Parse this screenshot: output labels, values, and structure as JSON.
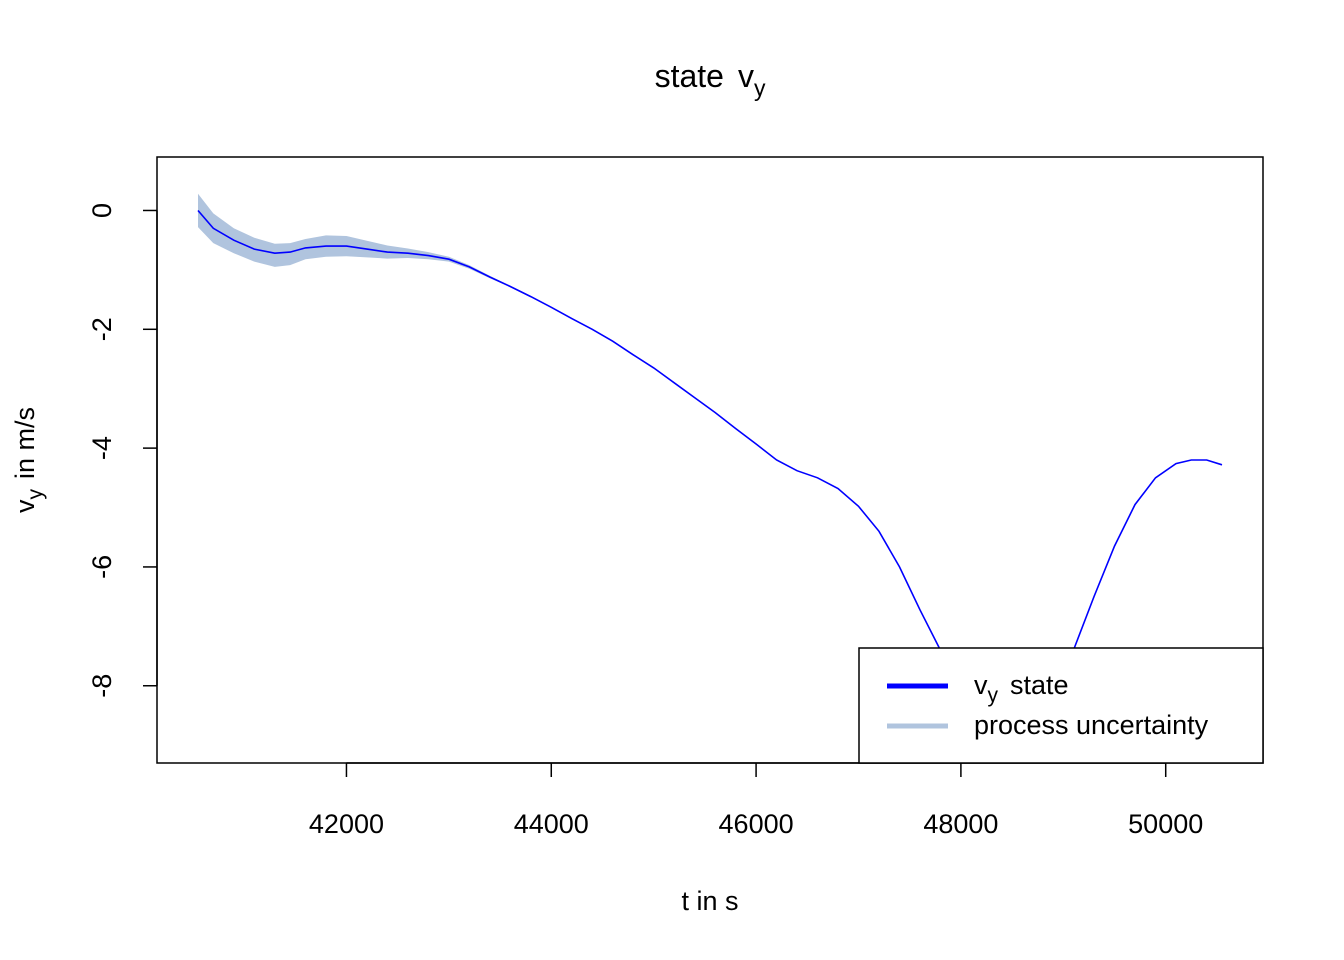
{
  "chart_data": {
    "type": "line",
    "title": {
      "main": "state",
      "symbol": "v",
      "subscript": "y"
    },
    "xlabel": "t in s",
    "ylabel": {
      "symbol": "v",
      "subscript": "y",
      "suffix": "in m/s"
    },
    "xlim": [
      40150,
      50950
    ],
    "ylim": [
      -9.3,
      0.9
    ],
    "x_ticks": [
      42000,
      44000,
      46000,
      48000,
      50000
    ],
    "y_ticks": [
      0,
      -2,
      -4,
      -6,
      -8
    ],
    "grid": false,
    "legend_position": "bottom-right",
    "series": [
      {
        "name": {
          "symbol": "v",
          "subscript": "y",
          "suffix": "state"
        },
        "color": "#0000ff",
        "x": [
          40550,
          40700,
          40900,
          41100,
          41300,
          41450,
          41600,
          41800,
          42000,
          42200,
          42400,
          42600,
          42800,
          43000,
          43200,
          43400,
          43600,
          43800,
          44000,
          44200,
          44400,
          44600,
          44800,
          45000,
          45200,
          45400,
          45600,
          45800,
          46000,
          46200,
          46400,
          46600,
          46800,
          47000,
          47200,
          47400,
          47600,
          47800,
          47950,
          48950,
          49100,
          49300,
          49500,
          49700,
          49900,
          50100,
          50250,
          50400,
          50550
        ],
        "y": [
          0.0,
          -0.3,
          -0.5,
          -0.65,
          -0.72,
          -0.7,
          -0.63,
          -0.6,
          -0.6,
          -0.65,
          -0.7,
          -0.72,
          -0.76,
          -0.82,
          -0.95,
          -1.12,
          -1.28,
          -1.45,
          -1.63,
          -1.82,
          -2.0,
          -2.2,
          -2.43,
          -2.65,
          -2.9,
          -3.15,
          -3.4,
          -3.67,
          -3.93,
          -4.2,
          -4.38,
          -4.5,
          -4.68,
          -4.98,
          -5.4,
          -6.0,
          -6.72,
          -7.4,
          -7.95,
          -7.95,
          -7.4,
          -6.5,
          -5.65,
          -4.95,
          -4.5,
          -4.26,
          -4.2,
          -4.2,
          -4.28
        ]
      },
      {
        "name": "process uncertainty",
        "color": "#b0c4de",
        "x": [
          40550,
          40700,
          40900,
          41100,
          41300,
          41450,
          41600,
          41800,
          42000,
          42200,
          42400,
          42600,
          42800,
          43000,
          43200,
          43400,
          43600,
          43800,
          44000
        ],
        "upper": [
          0.28,
          -0.05,
          -0.3,
          -0.46,
          -0.56,
          -0.55,
          -0.48,
          -0.42,
          -0.43,
          -0.51,
          -0.59,
          -0.64,
          -0.7,
          -0.78,
          -0.92,
          -1.1,
          -1.27,
          -1.44,
          -1.63
        ],
        "lower": [
          -0.28,
          -0.55,
          -0.72,
          -0.86,
          -0.95,
          -0.92,
          -0.82,
          -0.78,
          -0.77,
          -0.79,
          -0.81,
          -0.8,
          -0.82,
          -0.86,
          -0.98,
          -1.14,
          -1.29,
          -1.46,
          -1.63
        ]
      }
    ]
  }
}
